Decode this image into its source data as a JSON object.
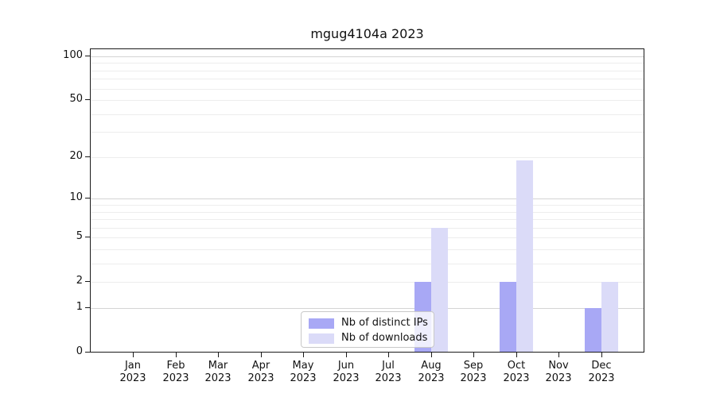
{
  "chart_data": {
    "type": "bar",
    "title": "mgug4104a 2023",
    "categories": [
      "Jan",
      "Feb",
      "Mar",
      "Apr",
      "May",
      "Jun",
      "Jul",
      "Aug",
      "Sep",
      "Oct",
      "Nov",
      "Dec"
    ],
    "x_tick_year": "2023",
    "series": [
      {
        "name": "Nb of distinct IPs",
        "color": "#a8a8f5",
        "values": [
          0,
          0,
          0,
          0,
          0,
          0,
          0,
          2,
          0,
          2,
          0,
          1
        ]
      },
      {
        "name": "Nb of downloads",
        "color": "#dbdbf8",
        "values": [
          0,
          0,
          0,
          0,
          0,
          0,
          0,
          6,
          0,
          19,
          0,
          2
        ]
      }
    ],
    "yscale": "log1p",
    "ylim": [
      0,
      112
    ],
    "y_tick_values": [
      0,
      1,
      2,
      5,
      10,
      20,
      50,
      100
    ],
    "y_major_gridlines": [
      1,
      10,
      100
    ],
    "y_minor_gridlines": [
      2,
      3,
      4,
      5,
      6,
      7,
      8,
      9,
      20,
      30,
      40,
      50,
      60,
      70,
      80,
      90
    ],
    "legend_position": "lower center",
    "grid": "horizontal"
  }
}
